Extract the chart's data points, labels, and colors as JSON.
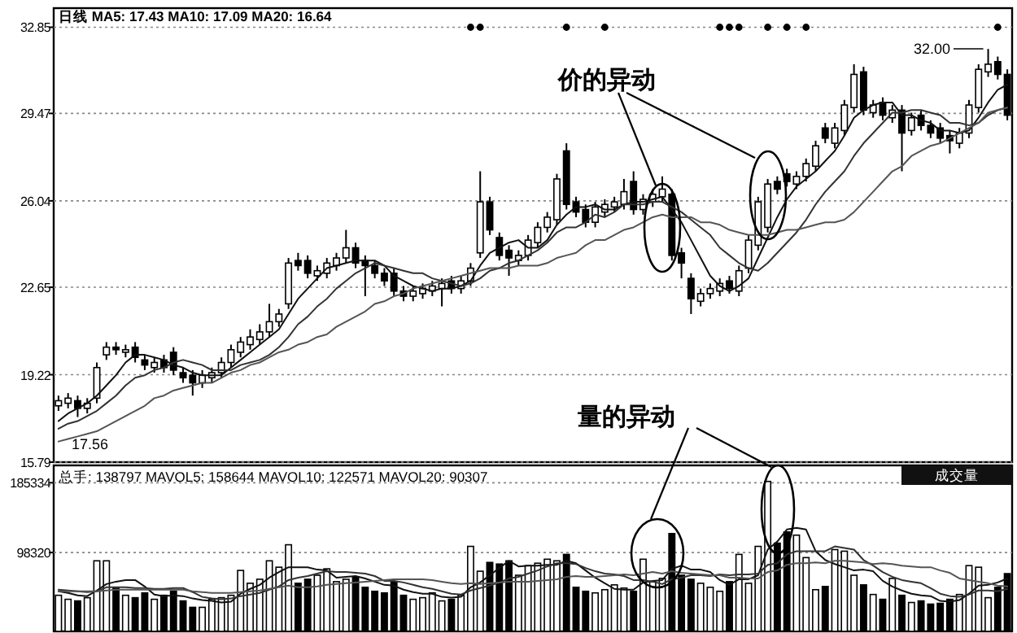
{
  "chart_data": [
    {
      "type": "candlestick",
      "annotations": [
        "日线  MA5: 17.43 MA10: 17.09 MA20: 16.64",
        "32.00",
        "17.56",
        "价的异动"
      ],
      "categories": [
        null,
        null,
        null,
        null,
        null,
        null,
        null,
        null,
        null,
        null,
        null,
        null,
        null,
        null,
        null,
        null,
        null,
        null,
        null,
        null,
        null,
        null,
        null,
        null,
        null,
        null,
        null,
        null,
        null,
        null,
        null,
        null,
        null,
        null,
        null,
        null,
        null,
        null,
        null,
        null,
        null,
        null,
        null,
        null,
        null,
        null,
        null,
        null,
        null,
        null,
        null,
        null,
        null,
        null,
        null,
        null,
        null,
        null,
        null,
        null,
        null,
        null,
        null,
        null,
        null,
        null,
        null,
        null,
        null,
        null,
        null,
        null,
        null,
        null,
        null,
        null,
        null,
        null,
        null,
        null,
        null,
        null,
        null,
        null,
        null,
        null,
        null,
        null,
        null,
        null,
        null,
        null,
        null,
        null,
        null,
        null,
        null,
        null,
        null,
        null
      ],
      "ohlc": [
        [
          18.0,
          18.4,
          17.8,
          18.2
        ],
        [
          18.1,
          18.5,
          17.9,
          18.3
        ],
        [
          18.2,
          18.4,
          17.56,
          17.9
        ],
        [
          17.9,
          18.3,
          17.7,
          18.1
        ],
        [
          18.3,
          19.7,
          18.1,
          19.5
        ],
        [
          20.0,
          20.5,
          19.8,
          20.3
        ],
        [
          20.3,
          20.5,
          20.0,
          20.2
        ],
        [
          20.1,
          20.4,
          19.9,
          20.2
        ],
        [
          20.3,
          20.5,
          19.7,
          19.9
        ],
        [
          19.8,
          20.0,
          19.4,
          19.6
        ],
        [
          19.5,
          19.9,
          19.3,
          19.7
        ],
        [
          19.8,
          20.0,
          19.3,
          19.5
        ],
        [
          20.1,
          20.3,
          19.2,
          19.4
        ],
        [
          19.3,
          19.5,
          18.9,
          19.1
        ],
        [
          19.2,
          19.4,
          18.4,
          18.9
        ],
        [
          18.9,
          19.4,
          18.7,
          19.2
        ],
        [
          19.1,
          19.5,
          18.9,
          19.3
        ],
        [
          19.3,
          19.9,
          19.1,
          19.7
        ],
        [
          19.7,
          20.4,
          19.5,
          20.2
        ],
        [
          20.1,
          20.7,
          19.9,
          20.5
        ],
        [
          20.4,
          21.0,
          20.2,
          20.7
        ],
        [
          20.6,
          21.2,
          20.4,
          20.9
        ],
        [
          20.9,
          22.0,
          20.7,
          21.3
        ],
        [
          21.3,
          21.8,
          21.1,
          21.6
        ],
        [
          22.0,
          23.8,
          21.8,
          23.6
        ],
        [
          23.7,
          24.0,
          23.3,
          23.5
        ],
        [
          23.7,
          23.9,
          23.0,
          23.2
        ],
        [
          23.1,
          23.5,
          22.9,
          23.3
        ],
        [
          23.2,
          23.8,
          23.0,
          23.6
        ],
        [
          23.5,
          24.0,
          23.3,
          23.8
        ],
        [
          23.8,
          24.9,
          23.6,
          24.2
        ],
        [
          24.2,
          24.4,
          23.4,
          23.6
        ],
        [
          23.7,
          23.9,
          22.3,
          23.5
        ],
        [
          23.5,
          23.7,
          23.0,
          23.2
        ],
        [
          23.2,
          23.4,
          22.7,
          22.9
        ],
        [
          23.2,
          23.4,
          22.3,
          22.5
        ],
        [
          22.5,
          22.7,
          22.1,
          22.3
        ],
        [
          22.3,
          22.7,
          22.1,
          22.5
        ],
        [
          22.4,
          22.8,
          22.2,
          22.6
        ],
        [
          22.5,
          22.9,
          22.3,
          22.7
        ],
        [
          22.6,
          23.0,
          21.9,
          22.8
        ],
        [
          22.9,
          23.1,
          22.4,
          22.6
        ],
        [
          22.6,
          23.1,
          22.4,
          22.9
        ],
        [
          22.9,
          23.6,
          22.7,
          23.4
        ],
        [
          24.0,
          27.2,
          23.8,
          26.0
        ],
        [
          26.0,
          26.2,
          24.7,
          24.9
        ],
        [
          24.6,
          24.8,
          23.7,
          23.9
        ],
        [
          24.1,
          24.3,
          23.1,
          23.8
        ],
        [
          23.7,
          24.1,
          23.5,
          23.9
        ],
        [
          23.9,
          24.7,
          23.7,
          24.5
        ],
        [
          24.4,
          25.2,
          24.2,
          25.0
        ],
        [
          25.0,
          25.6,
          24.8,
          25.4
        ],
        [
          25.3,
          27.1,
          25.1,
          26.9
        ],
        [
          28.0,
          28.3,
          25.7,
          25.9
        ],
        [
          26.0,
          26.2,
          25.4,
          25.6
        ],
        [
          25.7,
          25.9,
          25.0,
          25.2
        ],
        [
          25.2,
          26.0,
          25.0,
          25.8
        ],
        [
          25.6,
          26.1,
          25.4,
          25.9
        ],
        [
          25.8,
          26.2,
          25.6,
          26.0
        ],
        [
          25.9,
          26.9,
          25.7,
          26.4
        ],
        [
          26.8,
          27.2,
          25.5,
          25.7
        ],
        [
          25.7,
          26.3,
          25.5,
          26.1
        ],
        [
          26.0,
          26.5,
          25.8,
          26.3
        ],
        [
          26.2,
          27.0,
          26.0,
          26.5
        ],
        [
          26.3,
          26.5,
          23.7,
          23.9
        ],
        [
          24.0,
          24.2,
          23.0,
          23.6
        ],
        [
          23.0,
          23.2,
          21.6,
          22.2
        ],
        [
          22.1,
          22.6,
          21.9,
          22.4
        ],
        [
          22.4,
          22.8,
          22.2,
          22.6
        ],
        [
          22.5,
          23.0,
          22.3,
          22.8
        ],
        [
          22.9,
          23.1,
          22.4,
          22.6
        ],
        [
          22.5,
          23.5,
          22.3,
          23.3
        ],
        [
          23.4,
          24.7,
          23.2,
          24.5
        ],
        [
          24.3,
          26.2,
          24.1,
          26.0
        ],
        [
          25.0,
          26.9,
          24.8,
          26.7
        ],
        [
          26.8,
          27.0,
          26.3,
          26.5
        ],
        [
          27.1,
          27.3,
          26.6,
          26.8
        ],
        [
          26.7,
          27.2,
          26.5,
          27.0
        ],
        [
          27.0,
          27.7,
          26.8,
          27.5
        ],
        [
          27.4,
          28.4,
          27.2,
          28.2
        ],
        [
          28.9,
          29.1,
          28.3,
          28.5
        ],
        [
          28.3,
          29.1,
          28.1,
          28.9
        ],
        [
          28.8,
          30.0,
          28.6,
          29.8
        ],
        [
          29.7,
          31.4,
          29.5,
          31.0
        ],
        [
          31.1,
          31.3,
          29.4,
          29.6
        ],
        [
          29.5,
          30.0,
          29.3,
          29.8
        ],
        [
          29.9,
          30.1,
          29.2,
          29.4
        ],
        [
          29.3,
          29.8,
          29.1,
          29.6
        ],
        [
          29.6,
          29.8,
          27.2,
          28.7
        ],
        [
          28.8,
          29.5,
          28.6,
          29.3
        ],
        [
          29.4,
          29.6,
          28.8,
          29.0
        ],
        [
          29.0,
          29.2,
          28.5,
          28.7
        ],
        [
          28.9,
          29.1,
          28.3,
          28.5
        ],
        [
          28.6,
          28.8,
          27.9,
          28.4
        ],
        [
          28.3,
          28.9,
          28.1,
          28.7
        ],
        [
          28.7,
          30.0,
          28.5,
          29.8
        ],
        [
          29.7,
          31.4,
          29.5,
          31.2
        ],
        [
          31.1,
          32.0,
          30.9,
          31.4
        ],
        [
          31.5,
          31.7,
          30.8,
          31.0
        ],
        [
          31.0,
          31.2,
          29.2,
          29.4
        ]
      ],
      "colors": [
        "#ffffff",
        "#ffffff",
        "#000000",
        "#ffffff",
        "#ffffff",
        "#ffffff",
        "#000000",
        "#ffffff",
        "#000000",
        "#000000",
        "#ffffff",
        "#000000",
        "#000000",
        "#000000",
        "#000000",
        "#ffffff",
        "#ffffff",
        "#ffffff",
        "#ffffff",
        "#ffffff",
        "#ffffff",
        "#ffffff",
        "#ffffff",
        "#ffffff",
        "#ffffff",
        "#000000",
        "#000000",
        "#ffffff",
        "#ffffff",
        "#ffffff",
        "#ffffff",
        "#000000",
        "#000000",
        "#000000",
        "#000000",
        "#000000",
        "#000000",
        "#ffffff",
        "#ffffff",
        "#ffffff",
        "#ffffff",
        "#000000",
        "#ffffff",
        "#ffffff",
        "#ffffff",
        "#000000",
        "#000000",
        "#000000",
        "#ffffff",
        "#ffffff",
        "#ffffff",
        "#ffffff",
        "#ffffff",
        "#000000",
        "#000000",
        "#000000",
        "#ffffff",
        "#ffffff",
        "#ffffff",
        "#ffffff",
        "#000000",
        "#ffffff",
        "#ffffff",
        "#ffffff",
        "#000000",
        "#000000",
        "#000000",
        "#ffffff",
        "#ffffff",
        "#ffffff",
        "#000000",
        "#ffffff",
        "#ffffff",
        "#ffffff",
        "#ffffff",
        "#000000",
        "#000000",
        "#ffffff",
        "#ffffff",
        "#ffffff",
        "#000000",
        "#ffffff",
        "#ffffff",
        "#ffffff",
        "#000000",
        "#ffffff",
        "#000000",
        "#ffffff",
        "#000000",
        "#ffffff",
        "#000000",
        "#000000",
        "#000000",
        "#000000",
        "#ffffff",
        "#ffffff",
        "#ffffff",
        "#ffffff",
        "#000000",
        "#000000"
      ],
      "series": [
        {
          "type": "line",
          "color": "#111111",
          "values": [
            17.4,
            17.7,
            17.9,
            18.1,
            18.4,
            18.8,
            19.2,
            19.7,
            20.0,
            20.0,
            19.9,
            19.8,
            19.6,
            19.5,
            19.3,
            19.2,
            19.2,
            19.2,
            19.5,
            19.8,
            20.1,
            20.4,
            20.7,
            21.0,
            21.6,
            22.2,
            22.6,
            23.0,
            23.4,
            23.5,
            23.6,
            23.7,
            23.7,
            23.7,
            23.5,
            23.1,
            22.9,
            22.7,
            22.6,
            22.5,
            22.6,
            22.6,
            22.7,
            22.9,
            23.5,
            24.0,
            24.2,
            24.4,
            24.5,
            24.2,
            24.2,
            24.5,
            25.1,
            25.5,
            25.8,
            25.8,
            25.9,
            25.7,
            25.7,
            25.9,
            26.0,
            26.0,
            26.1,
            26.2,
            25.7,
            25.2,
            24.5,
            23.8,
            23.1,
            22.7,
            22.5,
            22.7,
            23.0,
            23.8,
            24.6,
            25.4,
            26.1,
            26.6,
            26.9,
            27.2,
            27.6,
            28.0,
            28.6,
            29.3,
            29.6,
            29.8,
            29.9,
            29.9,
            29.4,
            29.4,
            29.2,
            29.1,
            28.8,
            28.8,
            28.7,
            28.8,
            29.3,
            29.9,
            30.4,
            30.6
          ]
        },
        {
          "type": "line",
          "color": "#333333",
          "values": [
            17.1,
            17.3,
            17.4,
            17.6,
            17.8,
            18.1,
            18.4,
            18.8,
            19.1,
            19.2,
            19.4,
            19.5,
            19.7,
            19.8,
            19.7,
            19.6,
            19.4,
            19.4,
            19.4,
            19.6,
            19.7,
            19.8,
            20.0,
            20.3,
            20.7,
            21.2,
            21.5,
            21.9,
            22.2,
            22.6,
            22.9,
            23.2,
            23.4,
            23.6,
            23.5,
            23.4,
            23.3,
            23.2,
            23.2,
            23.0,
            22.9,
            22.8,
            22.7,
            22.8,
            23.0,
            23.3,
            23.4,
            23.6,
            23.7,
            23.9,
            24.1,
            24.4,
            24.8,
            25.0,
            25.0,
            25.2,
            25.5,
            25.4,
            25.6,
            25.9,
            25.9,
            25.9,
            26.0,
            26.0,
            25.8,
            25.6,
            25.3,
            25.0,
            24.7,
            24.2,
            23.9,
            23.6,
            23.4,
            23.3,
            23.6,
            24.0,
            24.4,
            24.8,
            25.3,
            25.9,
            26.4,
            26.8,
            27.2,
            27.8,
            28.3,
            28.7,
            29.1,
            29.5,
            29.5,
            29.6,
            29.6,
            29.5,
            29.4,
            29.1,
            29.1,
            29.0,
            29.1,
            29.4,
            29.6,
            29.7
          ]
        },
        {
          "type": "line",
          "color": "#555555",
          "values": [
            16.6,
            16.7,
            16.8,
            16.9,
            17.0,
            17.2,
            17.4,
            17.6,
            17.8,
            18.0,
            18.3,
            18.4,
            18.6,
            18.7,
            18.8,
            18.9,
            18.9,
            19.1,
            19.3,
            19.4,
            19.6,
            19.7,
            19.9,
            20.1,
            20.2,
            20.4,
            20.5,
            20.7,
            20.8,
            21.1,
            21.3,
            21.5,
            21.7,
            22.0,
            22.1,
            22.3,
            22.4,
            22.6,
            22.7,
            22.8,
            22.9,
            23.0,
            23.1,
            23.2,
            23.3,
            23.4,
            23.4,
            23.4,
            23.5,
            23.5,
            23.5,
            23.6,
            23.8,
            23.9,
            24.0,
            24.3,
            24.5,
            24.5,
            24.7,
            24.9,
            25.0,
            25.2,
            25.4,
            25.5,
            25.4,
            25.4,
            25.4,
            25.2,
            25.2,
            25.1,
            24.9,
            24.8,
            24.7,
            24.7,
            24.7,
            24.8,
            24.9,
            24.9,
            25.0,
            25.1,
            25.2,
            25.2,
            25.3,
            25.6,
            26.0,
            26.4,
            26.8,
            27.2,
            27.4,
            27.8,
            28.0,
            28.2,
            28.3,
            28.5,
            28.7,
            28.9,
            29.1,
            29.5,
            29.6,
            29.7
          ]
        },
        {
          "type": "scatter",
          "color": "#000000",
          "marker": "circle",
          "values": [
            null,
            null,
            null,
            null,
            null,
            null,
            null,
            null,
            null,
            null,
            null,
            null,
            null,
            null,
            null,
            null,
            null,
            null,
            null,
            null,
            null,
            null,
            null,
            null,
            null,
            null,
            null,
            null,
            null,
            null,
            null,
            null,
            null,
            null,
            null,
            null,
            null,
            null,
            null,
            null,
            null,
            null,
            null,
            32.85,
            32.85,
            null,
            null,
            null,
            null,
            null,
            null,
            null,
            null,
            32.85,
            null,
            null,
            null,
            32.85,
            null,
            null,
            null,
            null,
            null,
            null,
            null,
            null,
            null,
            null,
            null,
            32.85,
            32.85,
            32.85,
            null,
            null,
            32.85,
            null,
            32.85,
            null,
            32.85,
            null,
            null,
            null,
            null,
            null,
            null,
            null,
            null,
            null,
            null,
            null,
            null,
            null,
            null,
            null,
            null,
            null,
            null,
            null,
            32.85,
            null
          ]
        }
      ],
      "ylim": [
        15.79,
        33.6
      ],
      "yticks": [
        15.79,
        19.22,
        22.65,
        26.04,
        29.47,
        32.85
      ],
      "grid": "y"
    },
    {
      "type": "bar",
      "annotations": [
        "总手: 138797 MAVOL5: 158644 MAVOL10: 122571 MAVOL20: 90307",
        "成交量",
        "量的异动"
      ],
      "categories": [
        null,
        null,
        null,
        null,
        null,
        null,
        null,
        null,
        null,
        null,
        null,
        null,
        null,
        null,
        null,
        null,
        null,
        null,
        null,
        null,
        null,
        null,
        null,
        null,
        null,
        null,
        null,
        null,
        null,
        null,
        null,
        null,
        null,
        null,
        null,
        null,
        null,
        null,
        null,
        null,
        null,
        null,
        null,
        null,
        null,
        null,
        null,
        null,
        null,
        null,
        null,
        null,
        null,
        null,
        null,
        null,
        null,
        null,
        null,
        null,
        null,
        null,
        null,
        null,
        null,
        null,
        null,
        null,
        null,
        null,
        null,
        null,
        null,
        null,
        null,
        null,
        null,
        null,
        null,
        null,
        null,
        null,
        null,
        null,
        null,
        null,
        null,
        null,
        null,
        null,
        null,
        null,
        null,
        null,
        null,
        null,
        null,
        null,
        null,
        null
      ],
      "series": [
        {
          "colors": [
            "#ffffff",
            "#ffffff",
            "#000000",
            "#ffffff",
            "#ffffff",
            "#ffffff",
            "#000000",
            "#ffffff",
            "#000000",
            "#000000",
            "#ffffff",
            "#000000",
            "#000000",
            "#000000",
            "#000000",
            "#ffffff",
            "#ffffff",
            "#ffffff",
            "#ffffff",
            "#ffffff",
            "#ffffff",
            "#ffffff",
            "#ffffff",
            "#ffffff",
            "#ffffff",
            "#000000",
            "#000000",
            "#ffffff",
            "#ffffff",
            "#ffffff",
            "#ffffff",
            "#000000",
            "#000000",
            "#000000",
            "#000000",
            "#000000",
            "#000000",
            "#ffffff",
            "#ffffff",
            "#ffffff",
            "#ffffff",
            "#000000",
            "#ffffff",
            "#ffffff",
            "#ffffff",
            "#000000",
            "#000000",
            "#000000",
            "#ffffff",
            "#ffffff",
            "#ffffff",
            "#ffffff",
            "#ffffff",
            "#000000",
            "#000000",
            "#000000",
            "#ffffff",
            "#ffffff",
            "#ffffff",
            "#ffffff",
            "#000000",
            "#ffffff",
            "#ffffff",
            "#ffffff",
            "#000000",
            "#000000",
            "#000000",
            "#ffffff",
            "#ffffff",
            "#ffffff",
            "#000000",
            "#ffffff",
            "#ffffff",
            "#ffffff",
            "#ffffff",
            "#000000",
            "#000000",
            "#ffffff",
            "#ffffff",
            "#ffffff",
            "#000000",
            "#ffffff",
            "#ffffff",
            "#ffffff",
            "#000000",
            "#ffffff",
            "#000000",
            "#ffffff",
            "#000000",
            "#ffffff",
            "#000000",
            "#000000",
            "#000000",
            "#000000",
            "#ffffff",
            "#ffffff",
            "#ffffff",
            "#ffffff",
            "#000000",
            "#000000"
          ],
          "values": [
            45000,
            40000,
            38000,
            42000,
            88000,
            88000,
            55000,
            45000,
            42000,
            48000,
            40000,
            45000,
            50000,
            38000,
            30000,
            30000,
            40000,
            42000,
            45000,
            76000,
            60000,
            65000,
            88000,
            80000,
            108000,
            60000,
            65000,
            70000,
            78000,
            62000,
            65000,
            68000,
            55000,
            50000,
            48000,
            62000,
            45000,
            40000,
            42000,
            48000,
            38000,
            40000,
            45000,
            106000,
            75000,
            86000,
            84000,
            88000,
            70000,
            82000,
            85000,
            90000,
            88000,
            96000,
            55000,
            50000,
            48000,
            52000,
            58000,
            54000,
            50000,
            90000,
            62000,
            66000,
            122000,
            70000,
            65000,
            60000,
            55000,
            50000,
            62000,
            96000,
            60000,
            106000,
            187000,
            110000,
            124000,
            120000,
            92000,
            52000,
            56000,
            102000,
            100000,
            70000,
            58000,
            46000,
            40000,
            66000,
            45000,
            36000,
            38000,
            34000,
            35000,
            40000,
            46000,
            82000,
            80000,
            42000,
            55000,
            72000
          ]
        },
        {
          "type": "line",
          "color": "#111111",
          "values": [
            50000,
            48000,
            45000,
            44000,
            51000,
            59000,
            62000,
            64000,
            64000,
            56000,
            46000,
            44000,
            45000,
            44000,
            41000,
            39000,
            38000,
            36000,
            37000,
            47000,
            53000,
            58000,
            67000,
            74000,
            80000,
            80000,
            80000,
            77000,
            76000,
            67000,
            68000,
            69000,
            66000,
            62000,
            58000,
            57000,
            52000,
            49000,
            47000,
            47000,
            43000,
            42000,
            43000,
            55000,
            61000,
            70000,
            79000,
            88000,
            81000,
            82000,
            82000,
            83000,
            83000,
            88000,
            85000,
            76000,
            67000,
            60000,
            53000,
            52000,
            52000,
            61000,
            63000,
            64000,
            78000,
            82000,
            77000,
            77000,
            74000,
            64000,
            58000,
            65000,
            65000,
            70000,
            102000,
            112000,
            127000,
            129000,
            127000,
            100000,
            89000,
            84000,
            80000,
            76000,
            77000,
            75000,
            63000,
            56000,
            51000,
            47000,
            45000,
            44000,
            38000,
            37000,
            39000,
            47000,
            57000,
            58000,
            61000,
            66000
          ]
        },
        {
          "type": "line",
          "color": "#333333",
          "values": [
            52000,
            51000,
            50000,
            49000,
            50000,
            55000,
            55000,
            55000,
            54000,
            54000,
            53000,
            53000,
            54000,
            54000,
            49000,
            43000,
            41000,
            40000,
            41000,
            44000,
            46000,
            48000,
            52000,
            56000,
            64000,
            67000,
            69000,
            72000,
            75000,
            74000,
            74000,
            73000,
            72000,
            69000,
            63000,
            63000,
            61000,
            58000,
            55000,
            53000,
            50000,
            47000,
            46000,
            51000,
            54000,
            57000,
            61000,
            66000,
            68000,
            72000,
            76000,
            81000,
            85000,
            85000,
            84000,
            79000,
            75000,
            72000,
            71000,
            69000,
            64000,
            64000,
            62000,
            59000,
            65000,
            67000,
            70000,
            70000,
            69000,
            71000,
            70000,
            71000,
            71000,
            72000,
            83000,
            85000,
            96000,
            100000,
            100000,
            100000,
            100000,
            106000,
            104000,
            102000,
            89000,
            82000,
            74000,
            68000,
            64000,
            62000,
            60000,
            54000,
            47000,
            44000,
            43000,
            46000,
            51000,
            51000,
            50000,
            53000
          ]
        },
        {
          "type": "line",
          "color": "#555555",
          "values": [
            50000,
            50000,
            50000,
            50000,
            50000,
            51000,
            52000,
            52000,
            52000,
            52000,
            52000,
            52000,
            52000,
            52000,
            50000,
            49000,
            48000,
            48000,
            48000,
            49000,
            50000,
            51000,
            53000,
            55000,
            57000,
            55000,
            55000,
            56000,
            58000,
            59000,
            60000,
            61000,
            62000,
            63000,
            64000,
            65000,
            65000,
            65000,
            65000,
            64000,
            62000,
            60000,
            59000,
            60000,
            59000,
            60000,
            61000,
            62000,
            62000,
            62000,
            63000,
            64000,
            65000,
            68000,
            69000,
            68000,
            68000,
            69000,
            70000,
            71000,
            70000,
            72000,
            74000,
            72000,
            75000,
            73000,
            72000,
            71000,
            70000,
            70000,
            67000,
            67000,
            66000,
            66000,
            74000,
            76000,
            83000,
            85000,
            85000,
            86000,
            85000,
            88000,
            88000,
            87000,
            86000,
            84000,
            85000,
            84000,
            82000,
            81000,
            80000,
            80000,
            76000,
            73000,
            66000,
            64000,
            62000,
            60000,
            57000,
            56000
          ]
        }
      ],
      "ylim": [
        0,
        207000
      ],
      "yticks": [
        98320,
        185334
      ],
      "grid": "y"
    }
  ]
}
